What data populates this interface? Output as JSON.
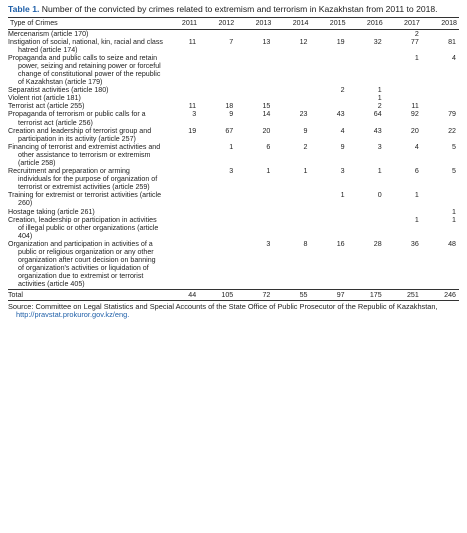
{
  "caption": {
    "label": "Table 1.",
    "text": "Number of the convicted by crimes related to extremism and terrorism in Kazakhstan from 2011 to 2018."
  },
  "table": {
    "header": [
      "Type of Crimes",
      "2011",
      "2012",
      "2013",
      "2014",
      "2015",
      "2016",
      "2017",
      "2018"
    ],
    "rows": [
      [
        "Mercenarism (article 170)",
        null,
        null,
        null,
        null,
        null,
        null,
        2,
        null
      ],
      [
        "Instigation of social, national, kin, racial and class hatred (article 174)",
        11,
        7,
        13,
        12,
        19,
        32,
        77,
        81
      ],
      [
        "Propaganda and public calls to seize and retain power, seizing and retaining power or forceful change of constitutional power of the republic of Kazakhstan (article 179)",
        null,
        null,
        null,
        null,
        null,
        null,
        1,
        4
      ],
      [
        "Separatist activities (article 180)",
        null,
        null,
        null,
        null,
        2,
        1,
        null,
        null
      ],
      [
        "Violent riot (article 181)",
        null,
        null,
        null,
        null,
        null,
        1,
        null,
        null
      ],
      [
        "Terrorist act (article 255)",
        11,
        18,
        15,
        null,
        null,
        2,
        11,
        null
      ],
      [
        "Propaganda of terrorism or public calls for a terrorist act (article 256)",
        3,
        9,
        14,
        23,
        43,
        64,
        92,
        79
      ],
      [
        "Creation and leadership of terrorist group and participation in its activity (article 257)",
        19,
        67,
        20,
        9,
        4,
        43,
        20,
        22
      ],
      [
        "Financing of terrorist and extremist activities and other assistance to terrorism or extremism (article 258)",
        null,
        1,
        6,
        2,
        9,
        3,
        4,
        5
      ],
      [
        "Recruitment and preparation or arming individuals for the purpose of organization of terrorist or extremist activities (article 259)",
        null,
        3,
        1,
        1,
        3,
        1,
        6,
        5
      ],
      [
        "Training for extremist or terrorist activities (article 260)",
        null,
        null,
        null,
        null,
        1,
        0,
        1,
        null
      ],
      [
        "Hostage taking (article 261)",
        null,
        null,
        null,
        null,
        null,
        null,
        null,
        1
      ],
      [
        "Creation, leadership or participation in activities of illegal public or other organizations (article 404)",
        null,
        null,
        null,
        null,
        null,
        null,
        1,
        1
      ],
      [
        "Organization and participation in activities of a public or religious organization or any other organization after court decision on banning of organization's activities or liquidation of organization due to extremist or terrorist activities (article 405)",
        null,
        null,
        3,
        8,
        16,
        28,
        36,
        48
      ],
      [
        "Total",
        44,
        105,
        72,
        55,
        97,
        175,
        251,
        246
      ]
    ]
  },
  "source": {
    "text": "Source: Committee on Legal Statistics and Special Accounts of the State Office of Public Prosecutor of the Republic of Kazakhstan,",
    "link": "http://pravstat.prokuror.gov.kz/eng."
  }
}
